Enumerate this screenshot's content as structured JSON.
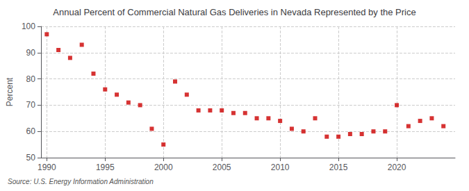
{
  "chart_data": {
    "type": "scatter",
    "title": "Annual Percent of Commercial Natural Gas Deliveries in Nevada Represented by the Price",
    "ylabel": "Percent",
    "source": "Source: U.S. Energy Information Administration",
    "x": [
      1990,
      1991,
      1992,
      1993,
      1994,
      1995,
      1996,
      1997,
      1998,
      1999,
      2000,
      2001,
      2002,
      2003,
      2004,
      2005,
      2006,
      2007,
      2008,
      2009,
      2010,
      2011,
      2012,
      2013,
      2014,
      2015,
      2016,
      2017,
      2018,
      2019,
      2020,
      2021,
      2022,
      2023,
      2024
    ],
    "values": [
      97,
      91,
      88,
      93,
      82,
      76,
      74,
      71,
      70,
      61,
      55,
      79,
      74,
      68,
      68,
      68,
      67,
      67,
      65,
      65,
      64,
      61,
      60,
      65,
      58,
      58,
      59,
      59,
      60,
      60,
      70,
      62,
      64,
      65,
      62
    ],
    "color": "#cc0000",
    "marker": "square",
    "xlim": [
      1989.5,
      2025
    ],
    "xticks": [
      1990,
      1995,
      2000,
      2005,
      2010,
      2015,
      2020
    ],
    "ylim": [
      50,
      100
    ],
    "yticks": [
      50,
      60,
      70,
      80,
      90,
      100
    ],
    "grid": true
  }
}
